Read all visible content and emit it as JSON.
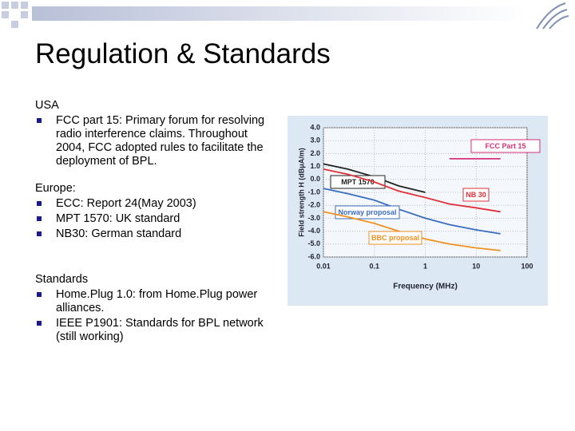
{
  "slide": {
    "title": "Regulation & Standards",
    "sections": [
      {
        "heading": "USA",
        "bullets": [
          "FCC part 15: Primary forum for resolving radio interference claims. Throughout 2004, FCC adopted rules to facilitate the deployment of BPL."
        ]
      },
      {
        "heading": "Europe:",
        "bullets": [
          "ECC: Report 24(May 2003)",
          "MPT 1570: UK standard",
          "NB30: German standard"
        ]
      },
      {
        "heading": "Standards",
        "bullets": [
          "Home.Plug 1.0: from Home.Plug power alliances.",
          "IEEE P1901: Standards for BPL network (still working)"
        ]
      }
    ]
  },
  "chart_data": {
    "type": "line",
    "x_label": "Frequency (MHz)",
    "y_label": "Field strength H (dBμA/m)",
    "log_x": true,
    "grid": true,
    "x": [
      0.01,
      0.03,
      0.1,
      0.3,
      1,
      3,
      10,
      30
    ],
    "xlim": [
      0.01,
      100
    ],
    "xticks": [
      0.01,
      0.1,
      1,
      10,
      100
    ],
    "ylim": [
      -6,
      4
    ],
    "yticks": [
      {
        "value": 4,
        "label": "4.0"
      },
      {
        "value": 3,
        "label": "3.0"
      },
      {
        "value": 2,
        "label": "2.0"
      },
      {
        "value": 1,
        "label": "1.0"
      },
      {
        "value": 0,
        "label": "0.0"
      },
      {
        "value": -1,
        "label": "-1.0"
      },
      {
        "value": -2,
        "label": "-2.0"
      },
      {
        "value": -3,
        "label": "-3.0"
      },
      {
        "value": -4,
        "label": "-4.0"
      },
      {
        "value": -5,
        "label": "-5.0"
      },
      {
        "value": -6,
        "label": "-6.0"
      }
    ],
    "series": [
      {
        "name": "FCC Part 15",
        "color": "#d8307a",
        "values": [
          null,
          null,
          null,
          null,
          null,
          1.6,
          1.6,
          1.6
        ]
      },
      {
        "name": "MPT 1570",
        "color": "#222222",
        "values": [
          1.2,
          0.8,
          0.2,
          -0.5,
          -1.0,
          null,
          null,
          null
        ]
      },
      {
        "name": "NB 30",
        "color": "#e0303a",
        "values": [
          0.8,
          0.4,
          -0.2,
          -0.9,
          -1.4,
          -1.9,
          -2.2,
          -2.5
        ]
      },
      {
        "name": "Norway proposal",
        "color": "#3a6cc0",
        "values": [
          -0.7,
          -1.1,
          -1.6,
          -2.3,
          -3.0,
          -3.5,
          -3.9,
          -4.2
        ]
      },
      {
        "name": "BBC proposal",
        "color": "#f09020",
        "values": [
          -2.5,
          -2.9,
          -3.4,
          -4.0,
          -4.6,
          -5.0,
          -5.3,
          -5.5
        ]
      }
    ]
  }
}
